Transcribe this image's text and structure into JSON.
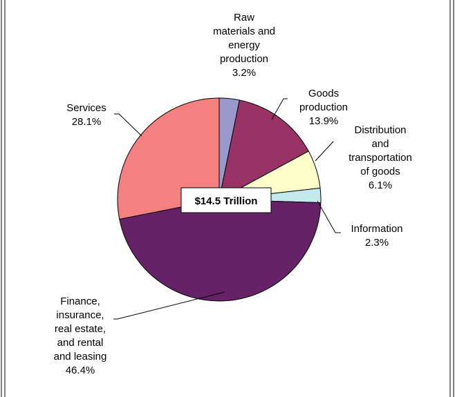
{
  "chart_data": {
    "type": "pie",
    "title": "",
    "center_label": "$14.5 Trillion",
    "start": "12 o'clock",
    "direction": "clockwise",
    "slices": [
      {
        "name": "Raw materials and energy production",
        "value": 3.2,
        "color": "#9999cc",
        "label_lines": [
          "Raw",
          "materials and",
          "energy",
          "production",
          "3.2%"
        ]
      },
      {
        "name": "Goods production",
        "value": 13.9,
        "color": "#993366",
        "label_lines": [
          "Goods",
          "production",
          "13.9%"
        ]
      },
      {
        "name": "Distribution and transportation of goods",
        "value": 6.1,
        "color": "#ffffcc",
        "label_lines": [
          "Distribution",
          "and",
          "transportation",
          "of goods",
          "6.1%"
        ]
      },
      {
        "name": "Information",
        "value": 2.3,
        "color": "#c3e9ef",
        "label_lines": [
          "Information",
          "2.3%"
        ]
      },
      {
        "name": "Finance, insurance, real estate, and rental and leasing",
        "value": 46.4,
        "color": "#662266",
        "label_lines": [
          "Finance,",
          "insurance,",
          "real estate,",
          "and rental",
          "and leasing",
          "46.4%"
        ]
      },
      {
        "name": "Services",
        "value": 28.1,
        "color": "#f58080",
        "label_lines": [
          "Services",
          "28.1%"
        ]
      }
    ]
  }
}
